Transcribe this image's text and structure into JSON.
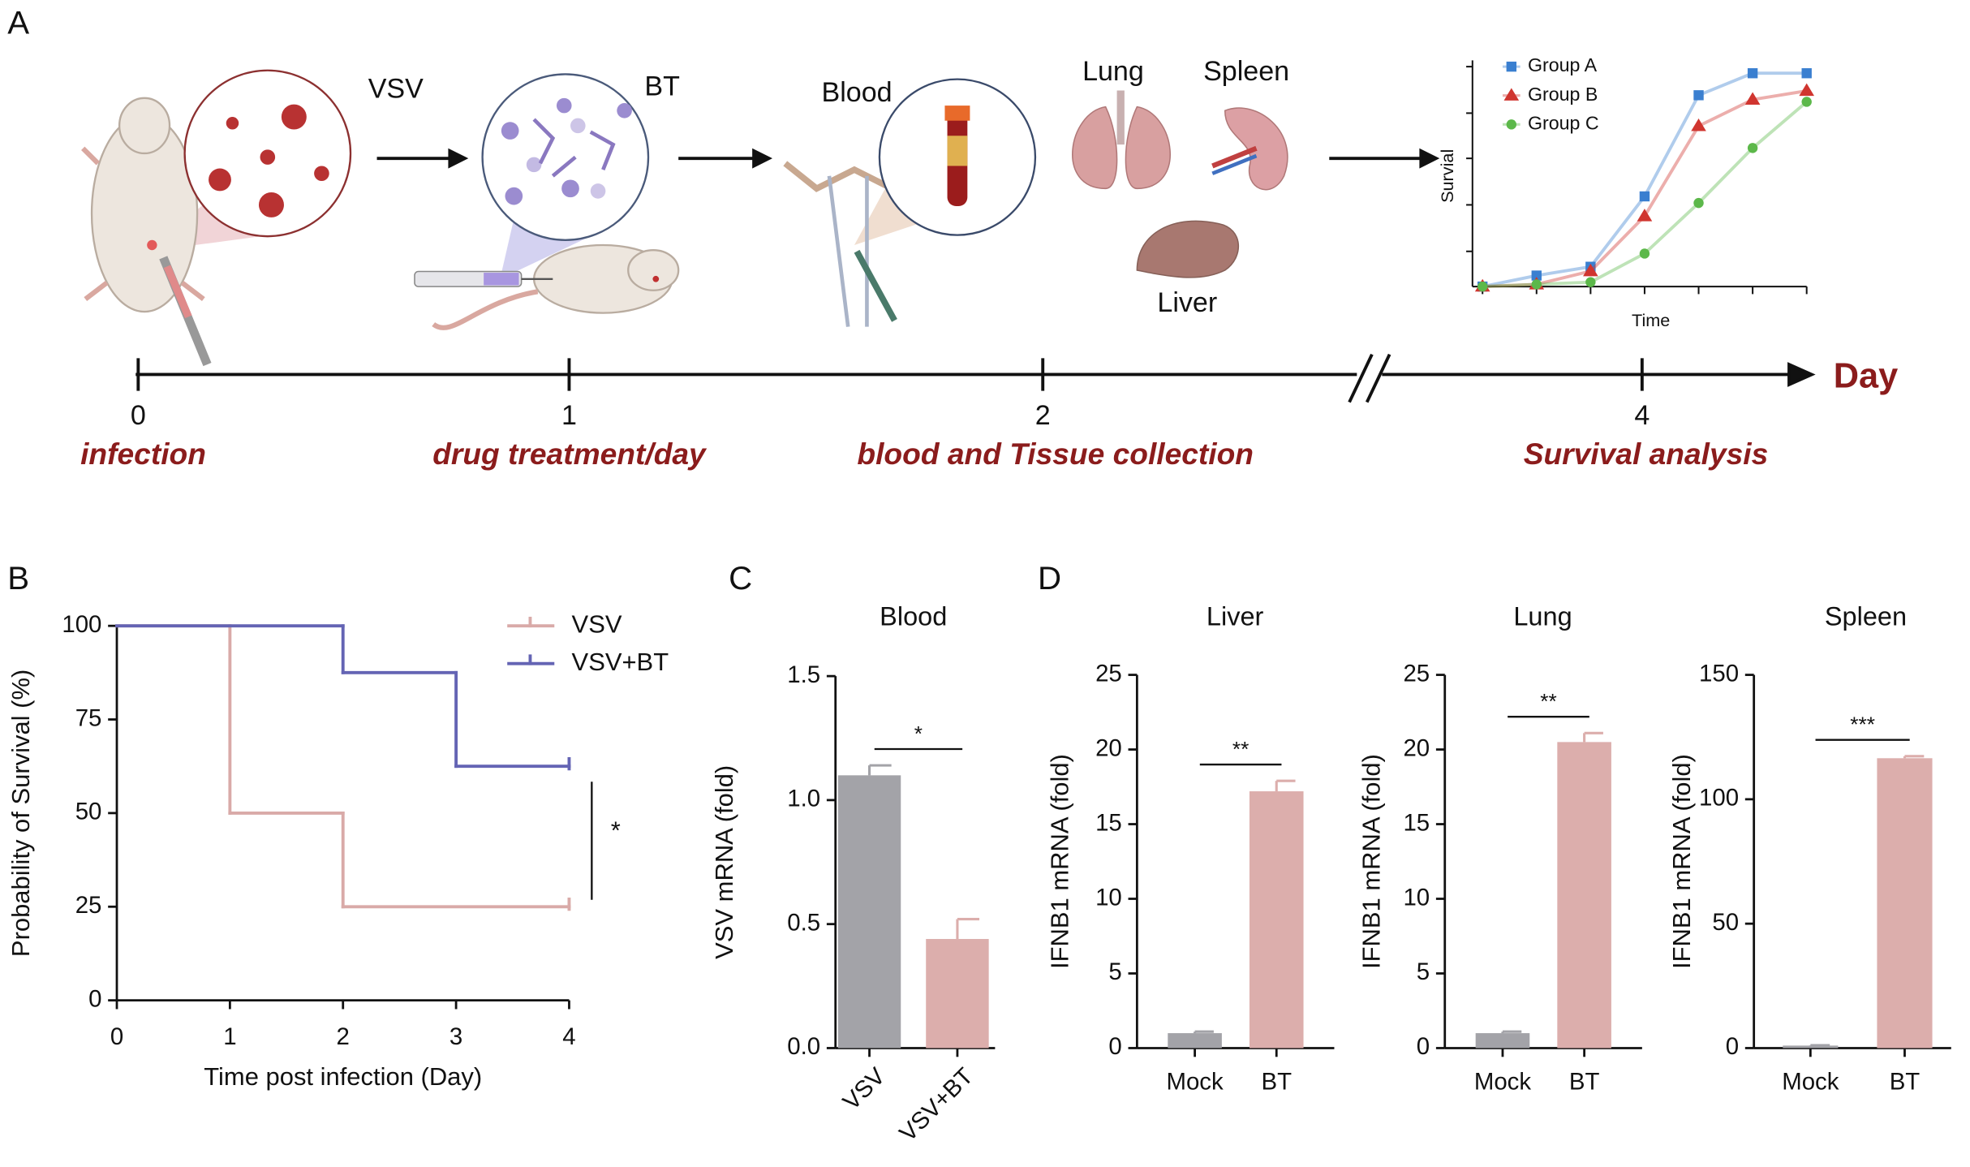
{
  "panel_labels": {
    "a": "A",
    "b": "B",
    "c": "C",
    "d": "D"
  },
  "schematic": {
    "labels": {
      "virus": "VSV",
      "drug": "BT",
      "blood": "Blood",
      "lung": "Lung",
      "spleen": "Spleen",
      "liver": "Liver"
    },
    "timeline": {
      "ticks": [
        0,
        1,
        2,
        4
      ],
      "events": [
        "infection",
        "drug treatment/day",
        "blood and Tissue collection",
        "Survival analysis"
      ],
      "unit": "Day"
    }
  },
  "chart_data": [
    {
      "type": "line",
      "xlabel": "Time",
      "ylabel": "Survial",
      "categories": [
        null,
        null,
        null,
        null,
        null,
        null,
        null
      ],
      "ylim": [
        0,
        1
      ],
      "series": [
        {
          "name": "Group A",
          "color": "#3a7fd0",
          "marker": "square",
          "values": [
            0,
            0.05,
            0.09,
            0.41,
            0.87,
            0.97,
            0.97
          ]
        },
        {
          "name": "Group B",
          "color": "#d0352f",
          "marker": "triangle",
          "values": [
            0,
            0.01,
            0.07,
            0.32,
            0.73,
            0.85,
            0.89
          ]
        },
        {
          "name": "Group C",
          "color": "#5cb84a",
          "marker": "circle",
          "values": [
            0,
            0.01,
            0.02,
            0.15,
            0.38,
            0.63,
            0.84
          ]
        }
      ]
    },
    {
      "type": "step",
      "xlabel": "Time post infection (Day)",
      "ylabel": "Probability of Survival (%)",
      "xlim": [
        0,
        4
      ],
      "xticks": [
        0,
        1,
        2,
        3,
        4
      ],
      "ylim": [
        0,
        100
      ],
      "yticks": [
        0,
        25,
        50,
        75,
        100
      ],
      "legend": "upper right",
      "annotation": "*",
      "series": [
        {
          "name": "VSV",
          "color": "#d9aaa8",
          "x": [
            0,
            1,
            2,
            4
          ],
          "values": [
            100,
            50,
            25,
            25
          ]
        },
        {
          "name": "VSV+BT",
          "color": "#6464b4",
          "x": [
            0,
            2,
            3,
            4
          ],
          "values": [
            100,
            87.5,
            62.5,
            62.5
          ]
        }
      ]
    },
    {
      "type": "bar",
      "title": "Blood",
      "ylabel": "VSV mRNA (fold)",
      "categories": [
        "VSV",
        "VSV+BT"
      ],
      "values": [
        1.1,
        0.44
      ],
      "errors": [
        0.04,
        0.08
      ],
      "colors": [
        "#a3a3a8",
        "#dcaeac"
      ],
      "ylim": [
        0,
        1.5
      ],
      "yticks": [
        {
          "value": 0,
          "label": "0.0"
        },
        0.5,
        {
          "value": 1,
          "label": "1.0"
        },
        1.5
      ],
      "annotation": "*"
    },
    {
      "type": "bar",
      "title": "Liver",
      "ylabel": "IFNB1 mRNA (fold)",
      "categories": [
        "Mock",
        "BT"
      ],
      "values": [
        1.0,
        17.2
      ],
      "errors": [
        0.1,
        0.7
      ],
      "colors": [
        "#a3a3a8",
        "#dcaeac"
      ],
      "ylim": [
        0,
        25
      ],
      "yticks": [
        0,
        5,
        10,
        15,
        20,
        25
      ],
      "annotation": "**"
    },
    {
      "type": "bar",
      "title": "Lung",
      "ylabel": "IFNB1 mRNA (fold)",
      "categories": [
        "Mock",
        "BT"
      ],
      "values": [
        1.0,
        20.5
      ],
      "errors": [
        0.1,
        0.6
      ],
      "colors": [
        "#a3a3a8",
        "#dcaeac"
      ],
      "ylim": [
        0,
        25
      ],
      "yticks": [
        0,
        5,
        10,
        15,
        20,
        25
      ],
      "annotation": "**"
    },
    {
      "type": "bar",
      "title": "Spleen",
      "ylabel": "IFNB1 mRNA (fold)",
      "categories": [
        "Mock",
        "BT"
      ],
      "values": [
        1.0,
        116.5
      ],
      "errors": [
        0.1,
        0.8
      ],
      "colors": [
        "#a3a3a8",
        "#dcaeac"
      ],
      "ylim": [
        0,
        150
      ],
      "yticks": [
        0,
        50,
        100,
        150
      ],
      "annotation": "***"
    }
  ]
}
